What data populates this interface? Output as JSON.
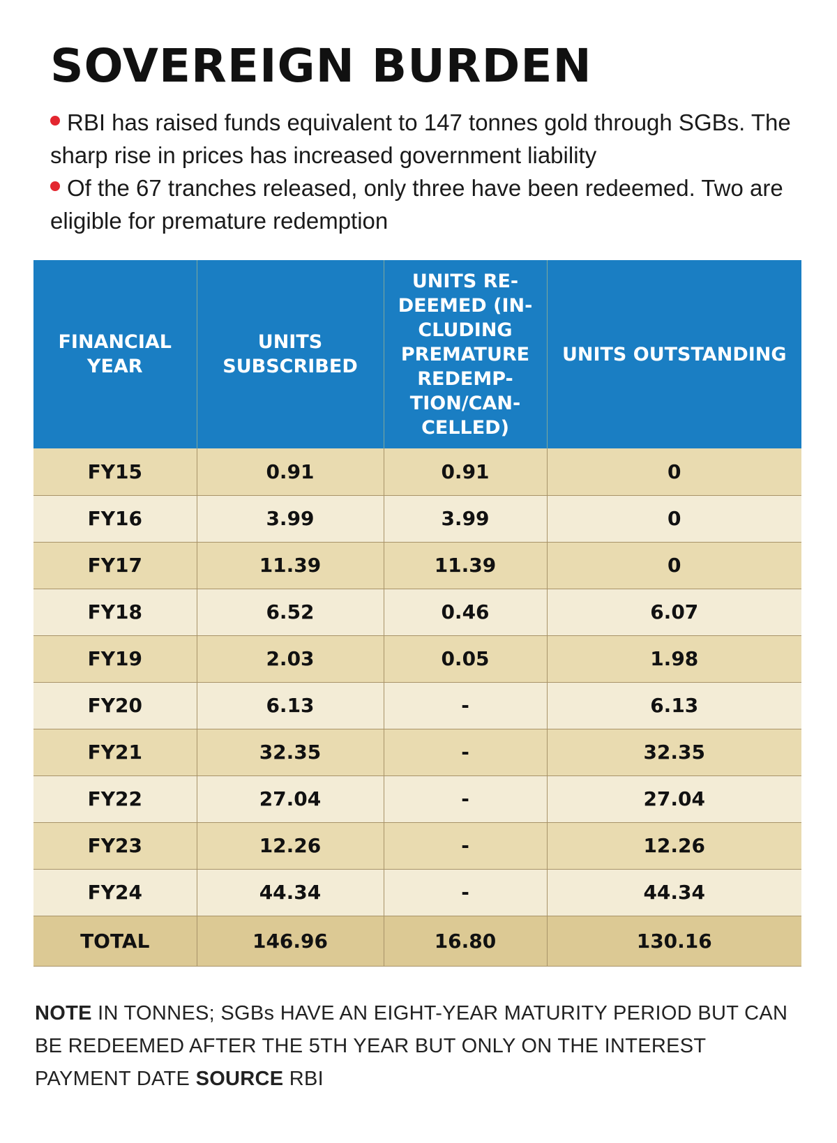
{
  "title": "SOVEREIGN BURDEN",
  "bullets": [
    "RBI has raised funds equivalent to 147 tonnes gold through SGBs. The sharp rise in prices has increased government liability",
    "Of the 67 tranches released, only three have been redeemed. Two are eligible for premature redemption"
  ],
  "colors": {
    "header_bg": "#1a7ec3",
    "row_odd": "#e9dbb0",
    "row_even": "#f3ecd6",
    "total_row": "#dcc994",
    "bullet_dot": "#e3262f"
  },
  "chart_data": {
    "type": "table",
    "columns": [
      "FINANCIAL YEAR",
      "UNITS SUBSCRIBED",
      "UNITS RE-DEEMED (IN-CLUDING PREMATURE REDEMP-TION/CAN-CELLED)",
      "UNITS OUTSTANDING"
    ],
    "rows": [
      [
        "FY15",
        "0.91",
        "0.91",
        "0"
      ],
      [
        "FY16",
        "3.99",
        "3.99",
        "0"
      ],
      [
        "FY17",
        "11.39",
        "11.39",
        "0"
      ],
      [
        "FY18",
        "6.52",
        "0.46",
        "6.07"
      ],
      [
        "FY19",
        "2.03",
        "0.05",
        "1.98"
      ],
      [
        "FY20",
        "6.13",
        "-",
        "6.13"
      ],
      [
        "FY21",
        "32.35",
        "-",
        "32.35"
      ],
      [
        "FY22",
        "27.04",
        "-",
        "27.04"
      ],
      [
        "FY23",
        "12.26",
        "-",
        "12.26"
      ],
      [
        "FY24",
        "44.34",
        "-",
        "44.34"
      ]
    ],
    "total": [
      "TOTAL",
      "146.96",
      "16.80",
      "130.16"
    ]
  },
  "note": {
    "note_label": "NOTE",
    "note_text": " IN TONNES; SGBs HAVE AN EIGHT-YEAR MATURITY PERIOD BUT CAN BE REDEEMED AFTER THE 5TH YEAR BUT ONLY ON THE INTEREST PAYMENT DATE ",
    "source_label": "SOURCE",
    "source_text": " RBI"
  }
}
